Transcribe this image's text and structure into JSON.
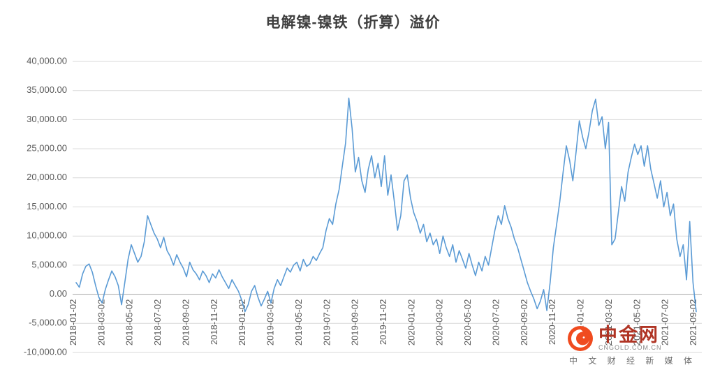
{
  "title": "电解镍-镍铁（折算）溢价",
  "watermark": {
    "name": "中金网",
    "domain": "CNGOLD.COM.CN",
    "tagline": "中 文 财 经 新 媒 体",
    "logo_color": "#f04b1f"
  },
  "chart_data": {
    "type": "line",
    "title": "电解镍-镍铁（折算）溢价",
    "xlabel": "",
    "ylabel": "",
    "ylim": [
      -10000,
      40000
    ],
    "grid": true,
    "legend": "none",
    "line_color": "#5b9bd5",
    "y_ticks": [
      -10000,
      -5000,
      0,
      5000,
      10000,
      15000,
      20000,
      25000,
      30000,
      35000,
      40000
    ],
    "y_tick_labels": [
      "-10,000.00",
      "-5,000.00",
      "0.00",
      "5,000.00",
      "10,000.00",
      "15,000.00",
      "20,000.00",
      "25,000.00",
      "30,000.00",
      "35,000.00",
      "40,000.00"
    ],
    "x_tick_labels": [
      "2018-01-02",
      "2018-03-02",
      "2018-05-02",
      "2018-07-02",
      "2018-09-02",
      "2018-11-02",
      "2019-01-02",
      "2019-03-02",
      "2019-05-02",
      "2019-07-02",
      "2019-09-02",
      "2019-11-02",
      "2020-01-02",
      "2020-03-02",
      "2020-05-02",
      "2020-07-02",
      "2020-09-02",
      "2020-11-02",
      "2021-01-02",
      "2021-03-02",
      "2021-05-02",
      "2021-07-02",
      "2021-09-02"
    ],
    "series": [
      {
        "name": "电解镍-镍铁（折算）溢价",
        "color": "#5b9bd5",
        "values": [
          2000,
          1200,
          3500,
          4800,
          5200,
          3800,
          1500,
          -500,
          -1500,
          800,
          2500,
          4000,
          3000,
          1500,
          -1800,
          2000,
          6000,
          8500,
          7000,
          5500,
          6500,
          9000,
          13500,
          12000,
          10500,
          9500,
          8000,
          9800,
          7500,
          6500,
          5000,
          6800,
          5500,
          4500,
          3000,
          5500,
          4200,
          3500,
          2500,
          4000,
          3200,
          2000,
          3500,
          2800,
          4200,
          3000,
          2000,
          1000,
          2500,
          1500,
          500,
          -1000,
          -3000,
          -1800,
          500,
          1500,
          -500,
          -2000,
          -800,
          500,
          -1500,
          1000,
          2500,
          1500,
          3000,
          4500,
          3800,
          5000,
          5500,
          4000,
          6000,
          4800,
          5200,
          6500,
          5800,
          7000,
          8000,
          11000,
          13000,
          12000,
          15500,
          18000,
          22000,
          26000,
          33700,
          28500,
          21000,
          23500,
          19500,
          17500,
          21500,
          23800,
          20000,
          22500,
          18500,
          23800,
          17000,
          20500,
          16000,
          11000,
          13500,
          19500,
          20500,
          16500,
          14000,
          12500,
          10500,
          12000,
          9000,
          10500,
          8500,
          9500,
          7000,
          10000,
          8000,
          6500,
          8500,
          5500,
          7500,
          6000,
          4500,
          7000,
          5000,
          3200,
          5500,
          4000,
          6500,
          5000,
          8000,
          11000,
          13500,
          12000,
          15200,
          13000,
          11500,
          9500,
          8000,
          6000,
          4000,
          2000,
          500,
          -800,
          -2500,
          -1200,
          800,
          -2800,
          2000,
          8000,
          12000,
          16000,
          21000,
          25500,
          23000,
          19500,
          24500,
          29800,
          27000,
          25000,
          28000,
          31500,
          33500,
          29000,
          30500,
          25000,
          29500,
          8500,
          9500,
          14000,
          18500,
          16000,
          21000,
          23500,
          25800,
          24000,
          25500,
          22000,
          25500,
          21500,
          19000,
          16500,
          19500,
          15000,
          17500,
          13500,
          15500,
          9500,
          6500,
          8500,
          2500,
          12500,
          2000,
          -3000
        ]
      }
    ]
  }
}
